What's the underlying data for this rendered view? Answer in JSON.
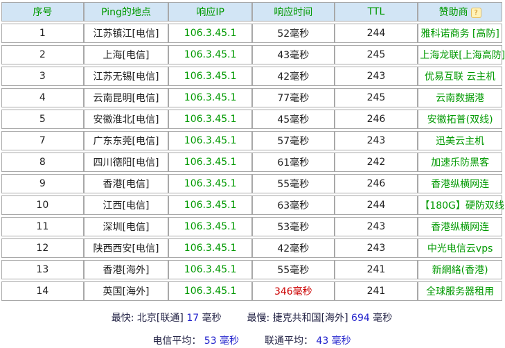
{
  "table": {
    "headers": [
      "序号",
      "Ping的地点",
      "响应IP",
      "响应时间",
      "TTL",
      "赞助商"
    ],
    "help_badge_glyph": "?",
    "rows": [
      {
        "num": "1",
        "location": "江苏镇江[电信]",
        "ip": "106.3.45.1",
        "time": "52毫秒",
        "slow": false,
        "ttl": "244",
        "sponsor": "雅科诺商务 [高防]"
      },
      {
        "num": "2",
        "location": "上海[电信]",
        "ip": "106.3.45.1",
        "time": "43毫秒",
        "slow": false,
        "ttl": "245",
        "sponsor": "上海龙联[上海高防]"
      },
      {
        "num": "3",
        "location": "江苏无锡[电信]",
        "ip": "106.3.45.1",
        "time": "42毫秒",
        "slow": false,
        "ttl": "243",
        "sponsor": "优易互联 云主机"
      },
      {
        "num": "4",
        "location": "云南昆明[电信]",
        "ip": "106.3.45.1",
        "time": "77毫秒",
        "slow": false,
        "ttl": "245",
        "sponsor": "云南数据港"
      },
      {
        "num": "5",
        "location": "安徽淮北[电信]",
        "ip": "106.3.45.1",
        "time": "45毫秒",
        "slow": false,
        "ttl": "246",
        "sponsor": "安徽拓普(双线)"
      },
      {
        "num": "7",
        "location": "广东东莞[电信]",
        "ip": "106.3.45.1",
        "time": "57毫秒",
        "slow": false,
        "ttl": "243",
        "sponsor": "迅美云主机"
      },
      {
        "num": "8",
        "location": "四川德阳[电信]",
        "ip": "106.3.45.1",
        "time": "61毫秒",
        "slow": false,
        "ttl": "242",
        "sponsor": "加速乐防黑客"
      },
      {
        "num": "9",
        "location": "香港[电信]",
        "ip": "106.3.45.1",
        "time": "55毫秒",
        "slow": false,
        "ttl": "246",
        "sponsor": "香港纵横网连"
      },
      {
        "num": "10",
        "location": "江西[电信]",
        "ip": "106.3.45.1",
        "time": "63毫秒",
        "slow": false,
        "ttl": "244",
        "sponsor": "【180G】硬防双线"
      },
      {
        "num": "11",
        "location": "深圳[电信]",
        "ip": "106.3.45.1",
        "time": "53毫秒",
        "slow": false,
        "ttl": "243",
        "sponsor": "香港纵横网连"
      },
      {
        "num": "12",
        "location": "陕西西安[电信]",
        "ip": "106.3.45.1",
        "time": "42毫秒",
        "slow": false,
        "ttl": "243",
        "sponsor": "中光电信云vps"
      },
      {
        "num": "13",
        "location": "香港[海外]",
        "ip": "106.3.45.1",
        "time": "55毫秒",
        "slow": false,
        "ttl": "241",
        "sponsor": "新網絡(香港)"
      },
      {
        "num": "14",
        "location": "英国[海外]",
        "ip": "106.3.45.1",
        "time": "346毫秒",
        "slow": true,
        "ttl": "241",
        "sponsor": "全球服务器租用"
      }
    ]
  },
  "summary": {
    "fastest_label": "最快: 北京[联通]",
    "fastest_value": "17",
    "fastest_unit": "毫秒",
    "slowest_label": "最慢: 捷克共和国[海外]",
    "slowest_value": "694",
    "slowest_unit": "毫秒",
    "telecom_avg_label": "电信平均：",
    "telecom_avg_value": "53 毫秒",
    "unicom_avg_label": "联通平均：",
    "unicom_avg_value": "43 毫秒"
  },
  "colors": {
    "header_bg": "#d2e5f5",
    "green_text": "#009900",
    "red_text": "#cc0000",
    "border": "#a8a8a8",
    "summary_label": "#222244",
    "summary_value": "#2222cc"
  }
}
